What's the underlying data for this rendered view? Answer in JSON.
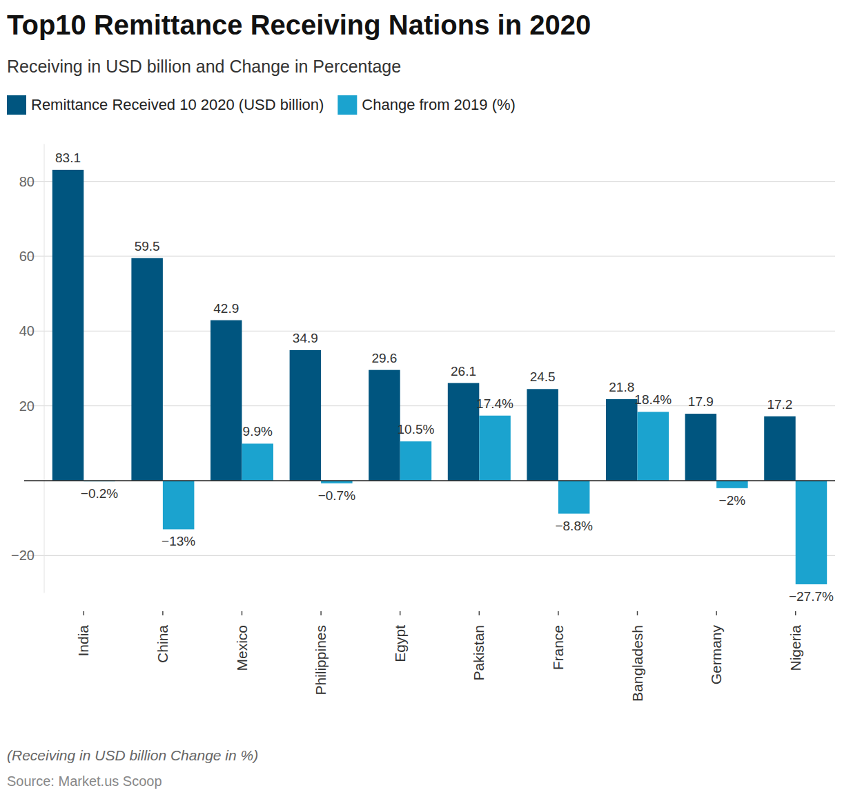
{
  "chart_data": {
    "type": "bar",
    "title": "Top10 Remittance Receiving Nations in 2020",
    "subtitle": "Receiving in USD billion and Change in Percentage",
    "note": "(Receiving in USD billion Change in %)",
    "source": "Source: Market.us Scoop",
    "categories": [
      "India",
      "China",
      "Mexico",
      "Philippines",
      "Egypt",
      "Pakistan",
      "France",
      "Bangladesh",
      "Germany",
      "Nigeria"
    ],
    "series": [
      {
        "name": "Remittance Received 10 2020 (USD billion)",
        "color": "#00557f",
        "values": [
          83.1,
          59.5,
          42.9,
          34.9,
          29.6,
          26.1,
          24.5,
          21.8,
          17.9,
          17.2
        ]
      },
      {
        "name": "Change from 2019 (%)",
        "color": "#1ba3cf",
        "values": [
          -0.2,
          -13,
          9.9,
          -0.7,
          10.5,
          17.4,
          -8.8,
          18.4,
          -2,
          -27.7
        ],
        "value_labels": [
          "−0.2%",
          "−13%",
          "9.9%",
          "−0.7%",
          "10.5%",
          "17.4%",
          "−8.8%",
          "18.4%",
          "−2%",
          "−27.7%"
        ]
      }
    ],
    "ylim": [
      -30,
      90
    ],
    "yticks": [
      -20,
      20,
      40,
      60,
      80
    ],
    "grid": true,
    "legend": "top-left",
    "data_labels": true
  }
}
